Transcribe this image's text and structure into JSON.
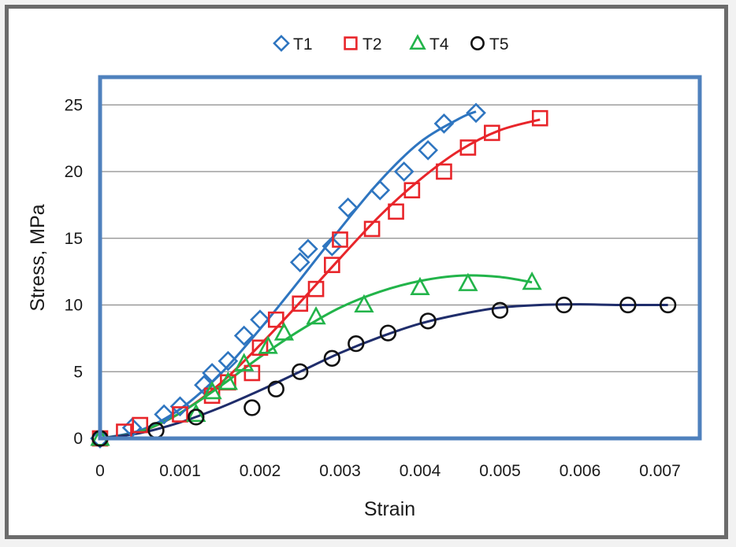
{
  "chart_data": {
    "type": "scatter",
    "title": "",
    "xlabel": "Strain",
    "ylabel": "Stress, MPa",
    "xlim": [
      0,
      0.0075
    ],
    "ylim": [
      0,
      27
    ],
    "x_ticks": [
      "0",
      "0.001",
      "0.002",
      "0.003",
      "0.004",
      "0.005",
      "0.006",
      "0.007"
    ],
    "x_tick_values": [
      0,
      0.001,
      0.002,
      0.003,
      0.004,
      0.005,
      0.006,
      0.007
    ],
    "y_ticks": [
      "0",
      "5",
      "10",
      "15",
      "20",
      "25"
    ],
    "y_tick_values": [
      0,
      5,
      10,
      15,
      20,
      25
    ],
    "grid": "horizontal",
    "legend_position": "top",
    "plot_border_color": "#4f81bd",
    "series": [
      {
        "name": "T1",
        "marker": "diamond",
        "color": "#2e75c0",
        "points": [
          [
            0,
            0
          ],
          [
            0.0004,
            0.8
          ],
          [
            0.0008,
            1.8
          ],
          [
            0.001,
            2.4
          ],
          [
            0.0013,
            4.0
          ],
          [
            0.0014,
            4.9
          ],
          [
            0.0016,
            5.8
          ],
          [
            0.0018,
            7.7
          ],
          [
            0.002,
            8.9
          ],
          [
            0.0025,
            13.2
          ],
          [
            0.0026,
            14.2
          ],
          [
            0.0029,
            14.4
          ],
          [
            0.0031,
            17.3
          ],
          [
            0.0035,
            18.6
          ],
          [
            0.0038,
            20.0
          ],
          [
            0.0041,
            21.6
          ],
          [
            0.0043,
            23.6
          ],
          [
            0.0047,
            24.4
          ]
        ],
        "fit": [
          [
            0,
            0
          ],
          [
            0.0005,
            0.6
          ],
          [
            0.001,
            2.2
          ],
          [
            0.0015,
            4.8
          ],
          [
            0.002,
            8.2
          ],
          [
            0.0025,
            11.9
          ],
          [
            0.003,
            15.7
          ],
          [
            0.0035,
            19.3
          ],
          [
            0.004,
            22.2
          ],
          [
            0.0045,
            24.0
          ],
          [
            0.0047,
            24.5
          ]
        ]
      },
      {
        "name": "T2",
        "marker": "square",
        "color": "#e8252a",
        "points": [
          [
            0,
            0
          ],
          [
            0.0003,
            0.5
          ],
          [
            0.0005,
            1.0
          ],
          [
            0.001,
            1.8
          ],
          [
            0.0014,
            3.2
          ],
          [
            0.0016,
            4.2
          ],
          [
            0.0019,
            4.9
          ],
          [
            0.002,
            6.8
          ],
          [
            0.0022,
            8.9
          ],
          [
            0.0025,
            10.1
          ],
          [
            0.0027,
            11.2
          ],
          [
            0.0029,
            13.0
          ],
          [
            0.003,
            14.9
          ],
          [
            0.0034,
            15.7
          ],
          [
            0.0037,
            17.0
          ],
          [
            0.0039,
            18.6
          ],
          [
            0.0043,
            20.0
          ],
          [
            0.0046,
            21.8
          ],
          [
            0.0049,
            22.9
          ],
          [
            0.0055,
            24.0
          ]
        ],
        "fit": [
          [
            0,
            0
          ],
          [
            0.0005,
            0.5
          ],
          [
            0.001,
            1.9
          ],
          [
            0.0015,
            4.1
          ],
          [
            0.002,
            7.0
          ],
          [
            0.0025,
            10.2
          ],
          [
            0.003,
            13.5
          ],
          [
            0.0035,
            16.7
          ],
          [
            0.004,
            19.4
          ],
          [
            0.0045,
            21.6
          ],
          [
            0.005,
            23.1
          ],
          [
            0.0055,
            23.9
          ]
        ]
      },
      {
        "name": "T4",
        "marker": "triangle",
        "color": "#22b44a",
        "points": [
          [
            0,
            0
          ],
          [
            0.0012,
            1.8
          ],
          [
            0.0014,
            3.5
          ],
          [
            0.0016,
            4.2
          ],
          [
            0.0018,
            5.6
          ],
          [
            0.0021,
            6.9
          ],
          [
            0.0023,
            7.9
          ],
          [
            0.0027,
            9.1
          ],
          [
            0.0033,
            10.0
          ],
          [
            0.004,
            11.3
          ],
          [
            0.0046,
            11.6
          ],
          [
            0.0054,
            11.7
          ]
        ],
        "fit": [
          [
            0,
            0
          ],
          [
            0.0005,
            0.5
          ],
          [
            0.001,
            1.9
          ],
          [
            0.0015,
            3.9
          ],
          [
            0.002,
            6.1
          ],
          [
            0.0025,
            8.1
          ],
          [
            0.003,
            9.8
          ],
          [
            0.0035,
            11.0
          ],
          [
            0.004,
            11.8
          ],
          [
            0.0045,
            12.2
          ],
          [
            0.005,
            12.1
          ],
          [
            0.0054,
            11.7
          ]
        ]
      },
      {
        "name": "T5",
        "marker": "circle",
        "color": "#111111",
        "line_color": "#1f2d6b",
        "points": [
          [
            0,
            0
          ],
          [
            0.0007,
            0.6
          ],
          [
            0.0012,
            1.6
          ],
          [
            0.0019,
            2.3
          ],
          [
            0.0022,
            3.7
          ],
          [
            0.0025,
            5.0
          ],
          [
            0.0029,
            6.0
          ],
          [
            0.0032,
            7.1
          ],
          [
            0.0036,
            7.9
          ],
          [
            0.0041,
            8.8
          ],
          [
            0.005,
            9.6
          ],
          [
            0.0058,
            10.0
          ],
          [
            0.0066,
            10.0
          ],
          [
            0.0071,
            10.0
          ]
        ],
        "fit": [
          [
            0,
            0
          ],
          [
            0.0005,
            0.4
          ],
          [
            0.001,
            1.2
          ],
          [
            0.0015,
            2.3
          ],
          [
            0.002,
            3.6
          ],
          [
            0.0025,
            5.0
          ],
          [
            0.003,
            6.4
          ],
          [
            0.0035,
            7.6
          ],
          [
            0.004,
            8.6
          ],
          [
            0.0045,
            9.3
          ],
          [
            0.005,
            9.8
          ],
          [
            0.0055,
            10.0
          ],
          [
            0.006,
            10.05
          ],
          [
            0.0065,
            10.0
          ],
          [
            0.0071,
            10.0
          ]
        ]
      }
    ]
  }
}
